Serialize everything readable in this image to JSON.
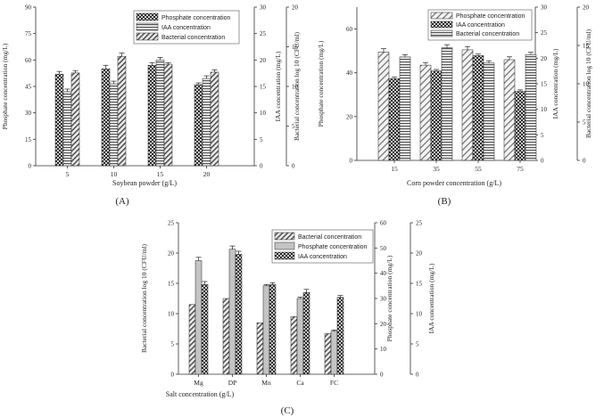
{
  "panels": [
    {
      "id": "A",
      "panel_label": "(A)",
      "chart_data": {
        "type": "bar",
        "xlabel": "Soybean powder (g/L)",
        "categories": [
          "5",
          "10",
          "15",
          "20"
        ],
        "axes": [
          {
            "label": "Phosphate concentration (mg/L)",
            "ticks": [
              "0",
              "15",
              "30",
              "45",
              "60",
              "75",
              "90"
            ],
            "range": [
              0,
              90
            ]
          },
          {
            "label": "IAA concentration (mg/L)",
            "ticks": [
              "0",
              "5",
              "10",
              "15",
              "20",
              "25",
              "30"
            ],
            "range": [
              0,
              30
            ]
          },
          {
            "label": "Bacterial concentration log 10 (CFU/ml)",
            "ticks": [
              "0",
              "5",
              "10",
              "15",
              "20"
            ],
            "range": [
              0,
              20
            ]
          }
        ],
        "series": [
          {
            "name": "Phosphate concentration",
            "axis": 0,
            "pattern": "check",
            "values": [
              52,
              55,
              57,
              46
            ],
            "errors": [
              1.5,
              2,
              1.5,
              1
            ]
          },
          {
            "name": "IAA concentration",
            "axis": 1,
            "pattern": "hline",
            "values": [
              14,
              15.5,
              20,
              16.5
            ],
            "errors": [
              0.5,
              0.5,
              0.5,
              0.5
            ]
          },
          {
            "name": "Bacterial concentration",
            "axis": 2,
            "pattern": "diag",
            "values": [
              11.7,
              13.8,
              12.8,
              11.8
            ],
            "errors": [
              0.3,
              0.4,
              0.2,
              0.3
            ]
          }
        ]
      }
    },
    {
      "id": "B",
      "panel_label": "(B)",
      "chart_data": {
        "type": "bar",
        "xlabel": "Corn powder concentration (g/L)",
        "categories": [
          "15",
          "35",
          "55",
          "75"
        ],
        "axes": [
          {
            "label": "Phosphate concentration (mg/L)",
            "ticks": [
              "0",
              "20",
              "40",
              "60"
            ],
            "range": [
              0,
              70
            ]
          },
          {
            "label": "IAA concentration (mg/L)",
            "ticks": [
              "0",
              "5",
              "10",
              "15",
              "20",
              "25",
              "30"
            ],
            "range": [
              0,
              30
            ]
          },
          {
            "label": "Bacterial concentration log 10 (CFU/ml)",
            "ticks": [
              "0",
              "5",
              "10",
              "15",
              "20"
            ],
            "range": [
              0,
              20
            ]
          }
        ],
        "series": [
          {
            "name": "Phosphate concentration",
            "axis": 0,
            "pattern": "diagwide",
            "values": [
              49.5,
              43.5,
              50.5,
              46
            ],
            "errors": [
              1.5,
              1.2,
              1.5,
              1.3
            ]
          },
          {
            "name": "IAA concentration",
            "axis": 1,
            "pattern": "check",
            "values": [
              16,
              17.5,
              20.5,
              13.5
            ],
            "errors": [
              0.3,
              0.3,
              0.3,
              0.3
            ]
          },
          {
            "name": "Bacterial concentration",
            "axis": 2,
            "pattern": "hline",
            "values": [
              13.5,
              14.7,
              12.7,
              13.8
            ],
            "errors": [
              0.3,
              0.4,
              0.3,
              0.3
            ]
          }
        ]
      }
    },
    {
      "id": "C",
      "panel_label": "(C)",
      "chart_data": {
        "type": "bar",
        "xlabel": "Salt concentration (g/L)",
        "categories": [
          "Mg",
          "DP",
          "Mn",
          "Ca",
          "FC"
        ],
        "axes": [
          {
            "label": "Bacterial concentration log 10 (CFU/ml)",
            "ticks": [
              "0",
              "5",
              "10",
              "15",
              "20",
              "25"
            ],
            "range": [
              0,
              25
            ]
          },
          {
            "label": "Phosphate concentration (mg/L)",
            "ticks": [
              "0",
              "10",
              "20",
              "30",
              "40",
              "50",
              "60"
            ],
            "range": [
              0,
              60
            ]
          },
          {
            "label": "IAA concentration (mg/L)",
            "ticks": [
              "0",
              "5",
              "10",
              "15",
              "20",
              "25"
            ],
            "range": [
              0,
              25
            ]
          }
        ],
        "series": [
          {
            "name": "Bacterial concentration",
            "axis": 0,
            "pattern": "diag",
            "values": [
              11.5,
              12.5,
              8.5,
              9.5,
              6.7
            ],
            "errors": [
              0,
              0,
              0,
              0,
              0
            ]
          },
          {
            "name": "Phosphate concentration",
            "axis": 1,
            "pattern": "light",
            "values": [
              45,
              49.5,
              35,
              30,
              17
            ],
            "errors": [
              1.3,
              1.3,
              0.5,
              0.5,
              0.5
            ]
          },
          {
            "name": "IAA concentration",
            "axis": 2,
            "pattern": "check",
            "values": [
              14.8,
              19.8,
              14.8,
              13.5,
              12.7
            ],
            "errors": [
              0.5,
              0.5,
              0.3,
              0.5,
              0.3
            ]
          }
        ]
      }
    }
  ]
}
